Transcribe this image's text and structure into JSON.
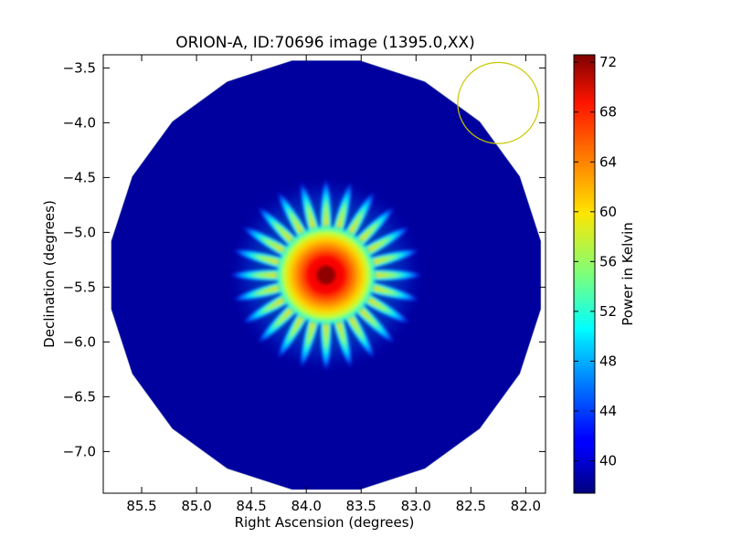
{
  "chart_data": {
    "type": "heatmap",
    "title": "ORION-A, ID:70696 image (1395.0,XX)",
    "xlabel": "Right Ascension (degrees)",
    "ylabel": "Declination (degrees)",
    "xlim": [
      85.85,
      81.82
    ],
    "ylim": [
      -7.38,
      -3.38
    ],
    "x_ticks": [
      85.5,
      85.0,
      84.5,
      84.0,
      83.5,
      83.0,
      82.5,
      82.0
    ],
    "x_tick_labels": [
      "85.5",
      "85.0",
      "84.5",
      "84.0",
      "83.5",
      "83.0",
      "82.5",
      "82.0"
    ],
    "y_ticks": [
      -3.5,
      -4.0,
      -4.5,
      -5.0,
      -5.5,
      -6.0,
      -6.5,
      -7.0
    ],
    "y_tick_labels": [
      "−3.5",
      "−4.0",
      "−4.5",
      "−5.0",
      "−5.5",
      "−6.0",
      "−6.5",
      "−7.0"
    ],
    "colorbar": {
      "label": "Power in Kelvin",
      "min": 37.4,
      "max": 72.6,
      "ticks": [
        40,
        44,
        48,
        52,
        56,
        60,
        64,
        68,
        72
      ],
      "tick_labels": [
        "40",
        "44",
        "48",
        "52",
        "56",
        "60",
        "64",
        "68",
        "72"
      ],
      "colormap": "jet"
    },
    "map": {
      "field_center": [
        83.82,
        -5.39
      ],
      "field_radius_deg": 1.98,
      "field_polygon_sides": 20,
      "background_level": 38.5,
      "source_center": [
        83.82,
        -5.39
      ],
      "source_peak": 72.0,
      "source_core_radius_deg": 0.3,
      "source_spokes": 24,
      "source_spoke_extent_deg": 0.85
    },
    "beam_circle": {
      "center": [
        82.25,
        -3.82
      ],
      "radius_deg": 0.37,
      "color": "#c8c800"
    },
    "grid": false,
    "colors": {
      "axes": "#000000",
      "background": "#ffffff"
    }
  }
}
